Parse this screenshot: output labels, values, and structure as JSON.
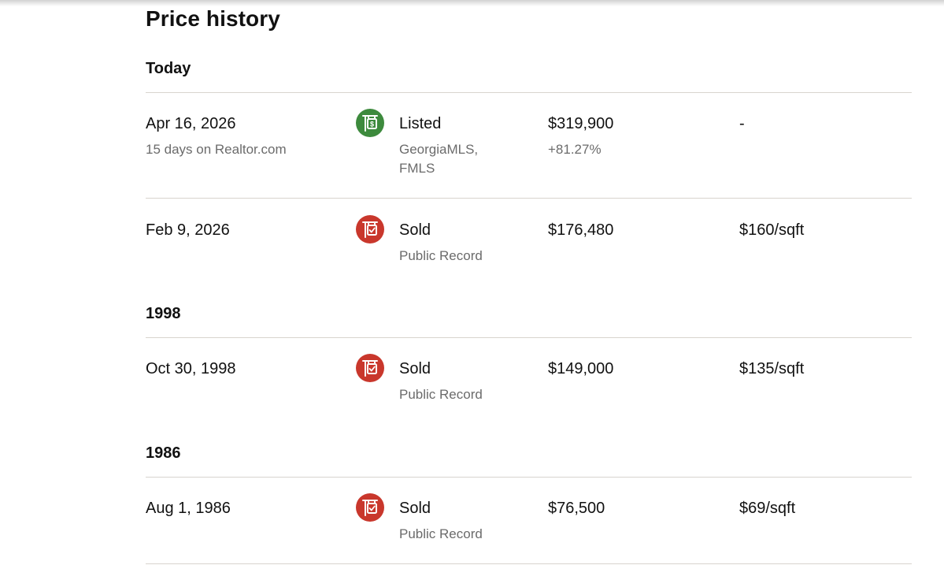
{
  "section": {
    "title": "Price history"
  },
  "colors": {
    "listed_icon_bg": "#3d8a3d",
    "sold_icon_bg": "#c9372c",
    "divider": "#d8d4ce",
    "secondary_text": "#6b6b6b"
  },
  "groups": [
    {
      "label": "Today",
      "rows": [
        {
          "date": "Apr 16, 2026",
          "date_note": "15 days on Realtor.com",
          "icon": "listing-sign-icon",
          "event": "Listed",
          "source_line1": "GeorgiaMLS,",
          "source_line2": "FMLS",
          "price": "$319,900",
          "price_change": "+81.27%",
          "price_per_sqft": "-"
        },
        {
          "date": "Feb 9, 2026",
          "icon": "sold-sign-icon",
          "event": "Sold",
          "source_line1": "Public Record",
          "price": "$176,480",
          "price_per_sqft": "$160/sqft"
        }
      ]
    },
    {
      "label": "1998",
      "rows": [
        {
          "date": "Oct 30, 1998",
          "icon": "sold-sign-icon",
          "event": "Sold",
          "source_line1": "Public Record",
          "price": "$149,000",
          "price_per_sqft": "$135/sqft"
        }
      ]
    },
    {
      "label": "1986",
      "rows": [
        {
          "date": "Aug 1, 1986",
          "icon": "sold-sign-icon",
          "event": "Sold",
          "source_line1": "Public Record",
          "price": "$76,500",
          "price_per_sqft": "$69/sqft"
        }
      ]
    }
  ]
}
